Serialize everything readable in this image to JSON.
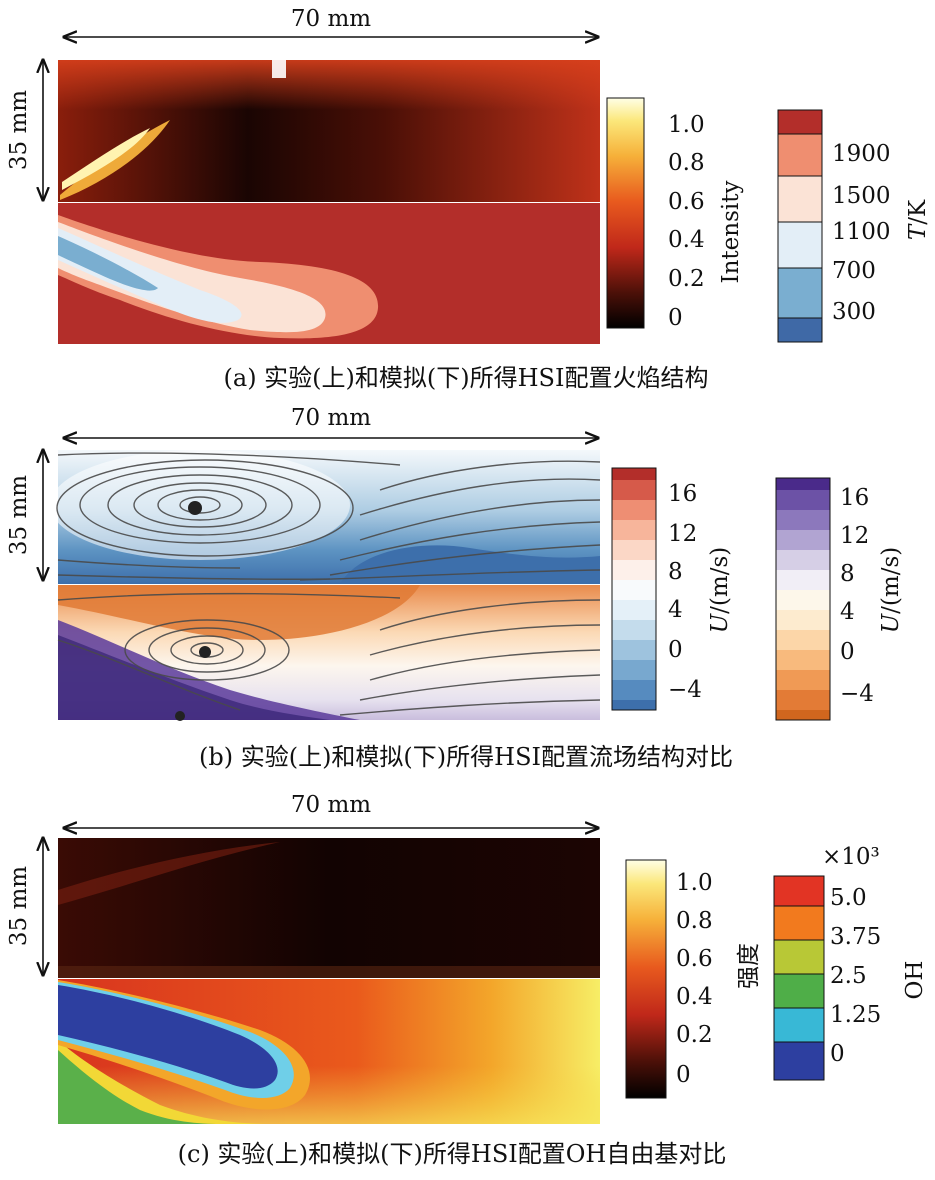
{
  "panel_a": {
    "width_label": "70 mm",
    "height_label": "35 mm",
    "caption": "(a) 实验(上)和模拟(下)所得HSI配置火焰结构",
    "intensity_label": "Intensity",
    "intensity_ticks": [
      "1.0",
      "0.8",
      "0.6",
      "0.4",
      "0.2",
      "0"
    ],
    "temp_label_italic": "T",
    "temp_label_rest": "/K",
    "temp_ticks": [
      "1900",
      "1500",
      "1100",
      "700",
      "300"
    ],
    "colors": {
      "hot": "#b32e2a",
      "warm": "#ef8e70",
      "mild": "#fbe3d6",
      "cool": "#e3eef7",
      "cold": "#7aaed0",
      "coldest": "#3f69a6"
    }
  },
  "panel_b": {
    "width_label": "70 mm",
    "height_label": "35 mm",
    "caption": "(b) 实验(上)和模拟(下)所得HSI配置流场结构对比",
    "u_label_italic": "U",
    "u_label_rest": "/(m/s)",
    "exp_ticks": [
      "16",
      "12",
      "8",
      "4",
      "0",
      "−4"
    ],
    "sim_ticks": [
      "16",
      "12",
      "8",
      "4",
      "0",
      "−4"
    ]
  },
  "panel_c": {
    "width_label": "70 mm",
    "height_label": "35 mm",
    "caption": "(c) 实验(上)和模拟(下)所得HSI配置OH自由基对比",
    "strength_label": "强度",
    "strength_ticks": [
      "1.0",
      "0.8",
      "0.6",
      "0.4",
      "0.2",
      "0"
    ],
    "oh_label": "OH",
    "oh_multiplier": "×10³",
    "oh_ticks": [
      "5.0",
      "3.75",
      "2.5",
      "1.25",
      "0"
    ]
  }
}
